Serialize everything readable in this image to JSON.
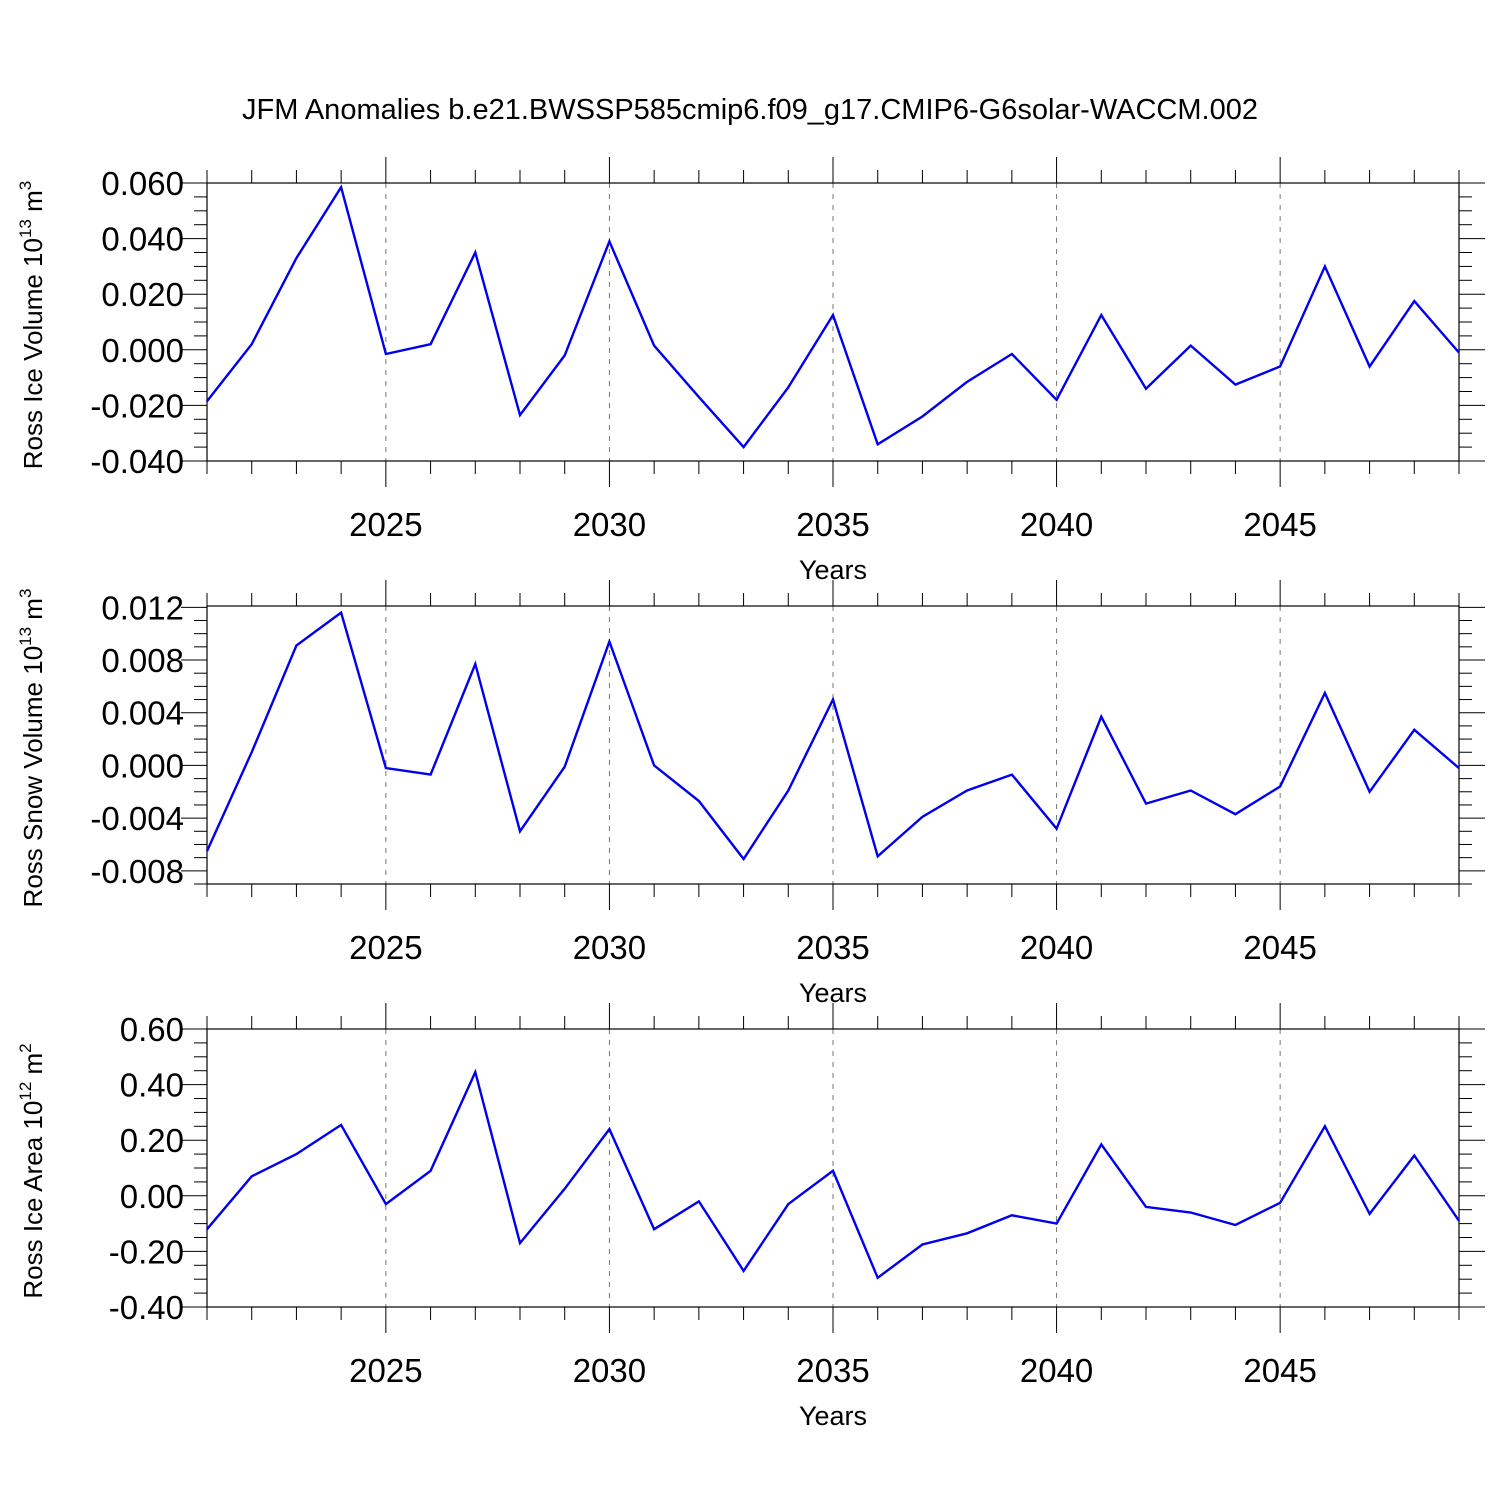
{
  "title": "JFM Anomalies b.e21.BWSSP585cmip6.f09_g17.CMIP6-G6solar-WACCM.002",
  "chart_data": [
    {
      "type": "line",
      "ylabel": {
        "main": "Ross Ice Volume 10",
        "sup": "13",
        "unit": " m",
        "unit_sup": "3"
      },
      "xlabel": "Years",
      "xlim": [
        2021,
        2049
      ],
      "ylim": [
        -0.04,
        0.06
      ],
      "yticks": [
        0.06,
        0.04,
        0.02,
        0.0,
        -0.02,
        -0.04
      ],
      "ytick_labels": [
        "0.060",
        "0.040",
        "0.020",
        "0.000",
        "-0.020",
        "-0.040"
      ],
      "xticks": [
        2025,
        2030,
        2035,
        2040,
        2045
      ],
      "xtick_labels": [
        "2025",
        "2030",
        "2035",
        "2040",
        "2045"
      ],
      "color": "#0000ee",
      "x": [
        2021,
        2022,
        2023,
        2024,
        2025,
        2026,
        2027,
        2028,
        2029,
        2030,
        2031,
        2032,
        2033,
        2034,
        2035,
        2036,
        2037,
        2038,
        2039,
        2040,
        2041,
        2042,
        2043,
        2044,
        2045,
        2046,
        2047,
        2048,
        2049
      ],
      "values": [
        -0.0185,
        0.002,
        0.033,
        0.0585,
        -0.0015,
        0.002,
        0.035,
        -0.0235,
        -0.002,
        0.039,
        0.0015,
        -0.017,
        -0.035,
        -0.0135,
        0.0125,
        -0.034,
        -0.024,
        -0.0115,
        -0.0015,
        -0.018,
        0.0125,
        -0.014,
        0.0015,
        -0.0125,
        -0.006,
        0.03,
        -0.006,
        0.0175,
        -0.001
      ]
    },
    {
      "type": "line",
      "ylabel": {
        "main": "Ross Snow Volume 10",
        "sup": "13",
        "unit": " m",
        "unit_sup": "3"
      },
      "xlabel": "Years",
      "xlim": [
        2021,
        2049
      ],
      "ylim": [
        -0.009,
        0.0121
      ],
      "yticks": [
        0.012,
        0.008,
        0.004,
        0.0,
        -0.004,
        -0.008
      ],
      "ytick_labels": [
        "0.012",
        "0.008",
        "0.004",
        "0.000",
        "-0.004",
        "-0.008"
      ],
      "xticks": [
        2025,
        2030,
        2035,
        2040,
        2045
      ],
      "xtick_labels": [
        "2025",
        "2030",
        "2035",
        "2040",
        "2045"
      ],
      "color": "#0000ee",
      "x": [
        2021,
        2022,
        2023,
        2024,
        2025,
        2026,
        2027,
        2028,
        2029,
        2030,
        2031,
        2032,
        2033,
        2034,
        2035,
        2036,
        2037,
        2038,
        2039,
        2040,
        2041,
        2042,
        2043,
        2044,
        2045,
        2046,
        2047,
        2048,
        2049
      ],
      "values": [
        -0.0065,
        0.001,
        0.0091,
        0.0116,
        -0.0002,
        -0.0007,
        0.0077,
        -0.005,
        -0.0001,
        0.0094,
        0.0,
        -0.0027,
        -0.0071,
        -0.0019,
        0.005,
        -0.0069,
        -0.0039,
        -0.0019,
        -0.0007,
        -0.0048,
        0.0037,
        -0.0029,
        -0.0019,
        -0.0037,
        -0.0016,
        0.0055,
        -0.002,
        0.0027,
        -0.0002
      ]
    },
    {
      "type": "line",
      "ylabel": {
        "main": "Ross Ice Area 10",
        "sup": "12",
        "unit": " m",
        "unit_sup": "2"
      },
      "xlabel": "Years",
      "xlim": [
        2021,
        2049
      ],
      "ylim": [
        -0.4,
        0.6
      ],
      "yticks": [
        0.6,
        0.4,
        0.2,
        0.0,
        -0.2,
        -0.4
      ],
      "ytick_labels": [
        "0.60",
        "0.40",
        "0.20",
        "0.00",
        "-0.20",
        "-0.40"
      ],
      "xticks": [
        2025,
        2030,
        2035,
        2040,
        2045
      ],
      "xtick_labels": [
        "2025",
        "2030",
        "2035",
        "2040",
        "2045"
      ],
      "color": "#0000ee",
      "x": [
        2021,
        2022,
        2023,
        2024,
        2025,
        2026,
        2027,
        2028,
        2029,
        2030,
        2031,
        2032,
        2033,
        2034,
        2035,
        2036,
        2037,
        2038,
        2039,
        2040,
        2041,
        2042,
        2043,
        2044,
        2045,
        2046,
        2047,
        2048,
        2049
      ],
      "values": [
        -0.12,
        0.07,
        0.15,
        0.255,
        -0.03,
        0.09,
        0.445,
        -0.17,
        0.025,
        0.24,
        -0.12,
        -0.02,
        -0.27,
        -0.03,
        0.09,
        -0.295,
        -0.175,
        -0.135,
        -0.07,
        -0.1,
        0.185,
        -0.04,
        -0.06,
        -0.105,
        -0.025,
        0.25,
        -0.065,
        0.145,
        -0.09
      ]
    }
  ]
}
